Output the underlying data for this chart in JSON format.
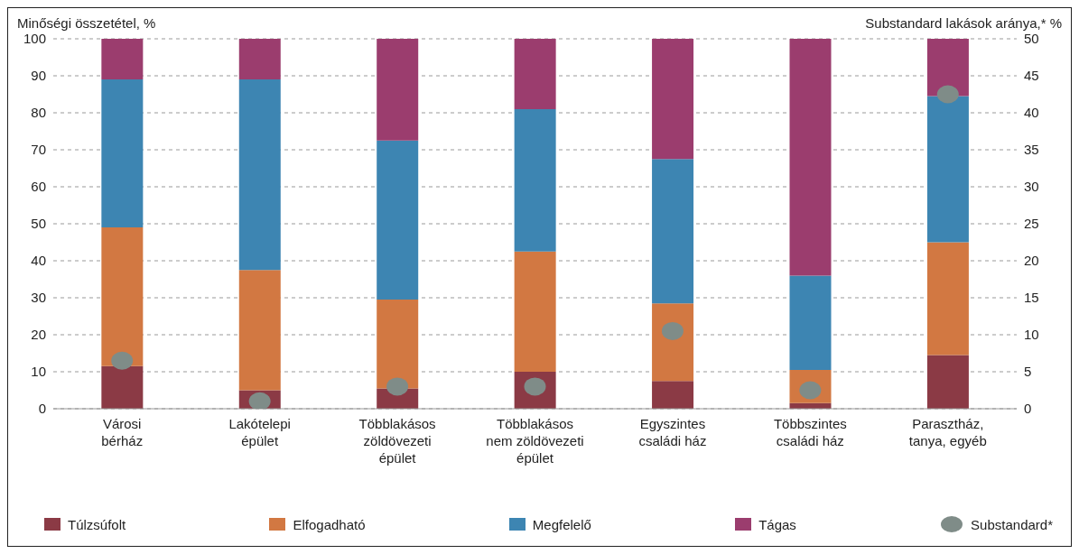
{
  "chart_data": {
    "type": "bar",
    "stacked": true,
    "ylabel": "Minőségi összetétel, %",
    "y2label": "Substandard lakások aránya,* %",
    "categories": [
      "Városi\nbérház",
      "Lakótelepi\népület",
      "Többlakásos\nzöldövezeti\népület",
      "Többlakásos\nnem zöldövezeti\népület",
      "Egyszintes\ncsaládi ház",
      "Többszintes\ncsaládi ház",
      "Parasztház,\ntanya, egyéb"
    ],
    "series": [
      {
        "name": "Túlzsúfolt",
        "color": "#8b3a45",
        "values": [
          11.5,
          5,
          5.5,
          10,
          7.5,
          1.5,
          14.5
        ]
      },
      {
        "name": "Elfogadható",
        "color": "#d27842",
        "values": [
          37.5,
          32.5,
          24,
          32.5,
          21,
          9,
          30.5
        ]
      },
      {
        "name": "Megfelelő",
        "color": "#3d85b2",
        "values": [
          40,
          51.5,
          43,
          38.5,
          39,
          25.5,
          39.5
        ]
      },
      {
        "name": "Tágas",
        "color": "#9b3d6e",
        "values": [
          11,
          11,
          27.5,
          19,
          32.5,
          64,
          15.5
        ]
      },
      {
        "name": "Substandard*",
        "type": "scatter",
        "axis": "y2",
        "color": "#7f8c88",
        "x": [
          "Városi\nbérház",
          "Lakótelepi\népület",
          "Többlakásos\nzöldövezeti\népület",
          "Többlakásos\nnem zöldövezeti\népület",
          "Egyszintes\ncsaládi ház",
          "Többszintes\ncsaládi ház",
          "Parasztház,\ntanya, egyéb"
        ],
        "values": [
          6.5,
          1,
          3,
          3,
          10.5,
          2.5,
          42.5
        ]
      }
    ],
    "ylim": [
      0,
      100
    ],
    "yticks": [
      0,
      10,
      20,
      30,
      40,
      50,
      60,
      70,
      80,
      90,
      100
    ],
    "y2lim": [
      0,
      50
    ],
    "y2ticks": [
      0,
      5,
      10,
      15,
      20,
      25,
      30,
      35,
      40,
      45,
      50
    ],
    "grid": "y",
    "legend": "bottom",
    "marker": "circle"
  }
}
